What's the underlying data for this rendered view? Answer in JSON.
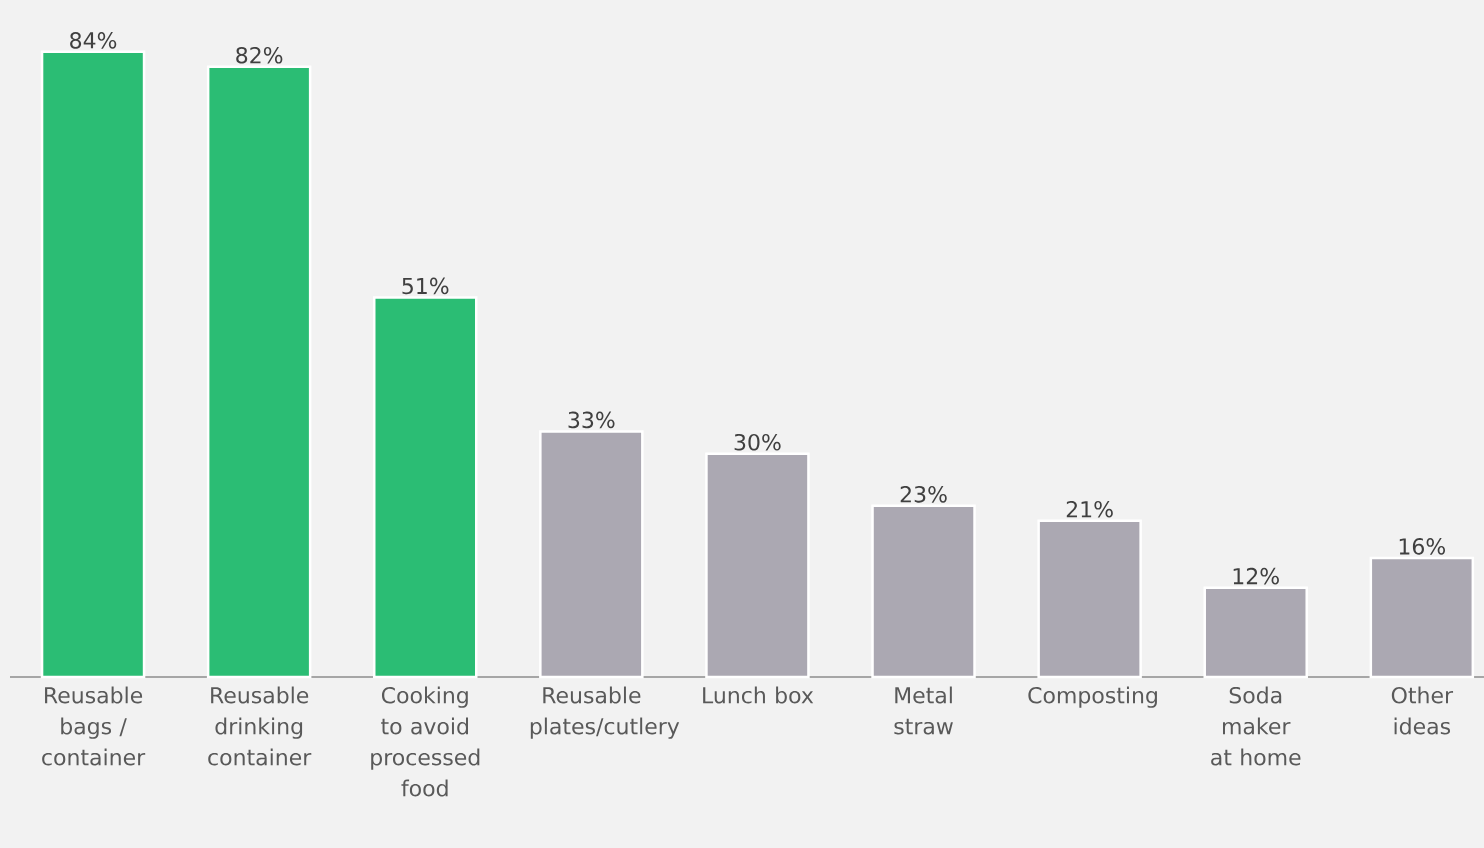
{
  "chart_data": {
    "type": "bar",
    "categories": [
      "Reusable bags / container",
      "Reusable drinking container",
      "Cooking to avoid processed food",
      "Reusable plates/cutlery",
      "Lunch box",
      "Metal straw",
      "Composting",
      "Soda maker at home",
      "Other ideas"
    ],
    "values": [
      84,
      82,
      51,
      33,
      30,
      23,
      21,
      12,
      16
    ],
    "value_labels": [
      "84%",
      "82%",
      "51%",
      "33%",
      "30%",
      "23%",
      "21%",
      "12%",
      "16%"
    ],
    "colors": [
      "#2bbd74",
      "#2bbd74",
      "#2bbd74",
      "#aba8b2",
      "#aba8b2",
      "#aba8b2",
      "#aba8b2",
      "#aba8b2",
      "#aba8b2"
    ],
    "tick_labels": "x"
  }
}
